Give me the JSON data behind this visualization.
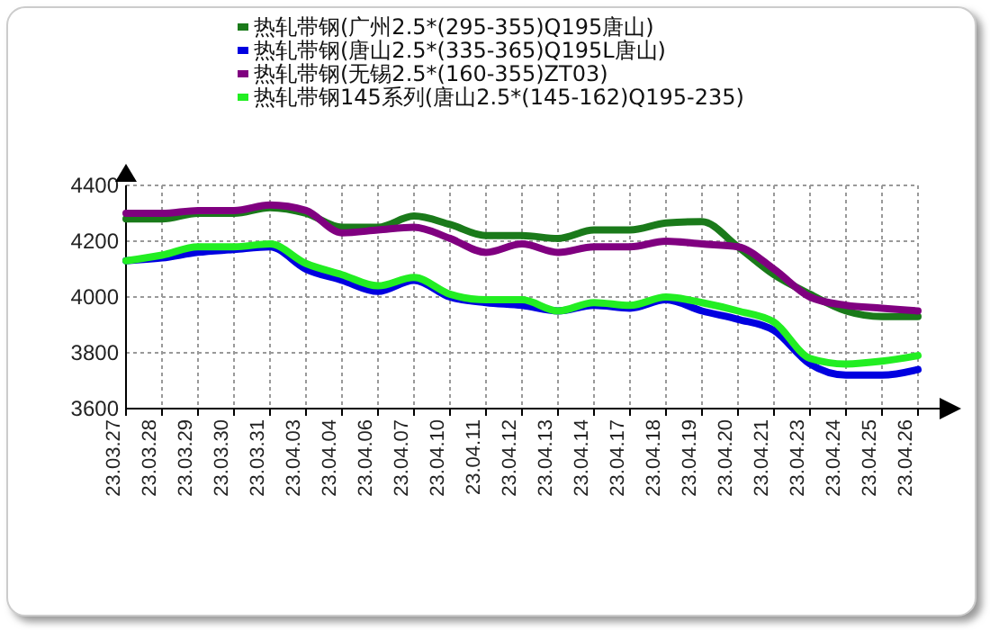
{
  "chart_data": {
    "type": "line",
    "categories": [
      "23.03.27",
      "23.03.28",
      "23.03.29",
      "23.03.30",
      "23.03.31",
      "23.04.03",
      "23.04.04",
      "23.04.06",
      "23.04.07",
      "23.04.10",
      "23.04.11",
      "23.04.12",
      "23.04.13",
      "23.04.14",
      "23.04.17",
      "23.04.18",
      "23.04.19",
      "23.04.20",
      "23.04.21",
      "23.04.23",
      "23.04.24",
      "23.04.25",
      "23.04.26"
    ],
    "series": [
      {
        "name": "热轧带钢(广州2.5*(295-355)Q195唐山)",
        "color": "#1a7a1a",
        "values": [
          4280,
          4280,
          4300,
          4300,
          4320,
          4300,
          4250,
          4250,
          4290,
          4260,
          4220,
          4220,
          4210,
          4240,
          4240,
          4265,
          4270,
          4180,
          4080,
          4010,
          3950,
          3930,
          3930
        ]
      },
      {
        "name": "热轧带钢(唐山2.5*(335-365)Q195L唐山)",
        "color": "#0000e0",
        "values": [
          4130,
          4140,
          4160,
          4170,
          4180,
          4100,
          4060,
          4020,
          4060,
          4000,
          3980,
          3970,
          3950,
          3970,
          3960,
          3990,
          3950,
          3920,
          3880,
          3760,
          3720,
          3720,
          3740
        ]
      },
      {
        "name": "热轧带钢(无锡2.5*(160-355)ZT03)",
        "color": "#800080",
        "values": [
          4300,
          4300,
          4310,
          4310,
          4330,
          4310,
          4230,
          4240,
          4250,
          4210,
          4160,
          4190,
          4160,
          4180,
          4180,
          4200,
          4190,
          4180,
          4100,
          4000,
          3970,
          3960,
          3950
        ]
      },
      {
        "name": "热轧带钢145系列(唐山2.5*(145-162)Q195-235)",
        "color": "#22ee22",
        "values": [
          4130,
          4150,
          4180,
          4180,
          4190,
          4120,
          4080,
          4040,
          4070,
          4010,
          3990,
          3990,
          3950,
          3980,
          3970,
          4000,
          3980,
          3950,
          3910,
          3780,
          3760,
          3770,
          3790
        ]
      }
    ],
    "ylim": [
      3600,
      4400
    ],
    "yticks": [
      3600,
      3800,
      4000,
      4200,
      4400
    ],
    "grid": true,
    "legend": "top",
    "marker": "none",
    "line_style": "solid"
  }
}
